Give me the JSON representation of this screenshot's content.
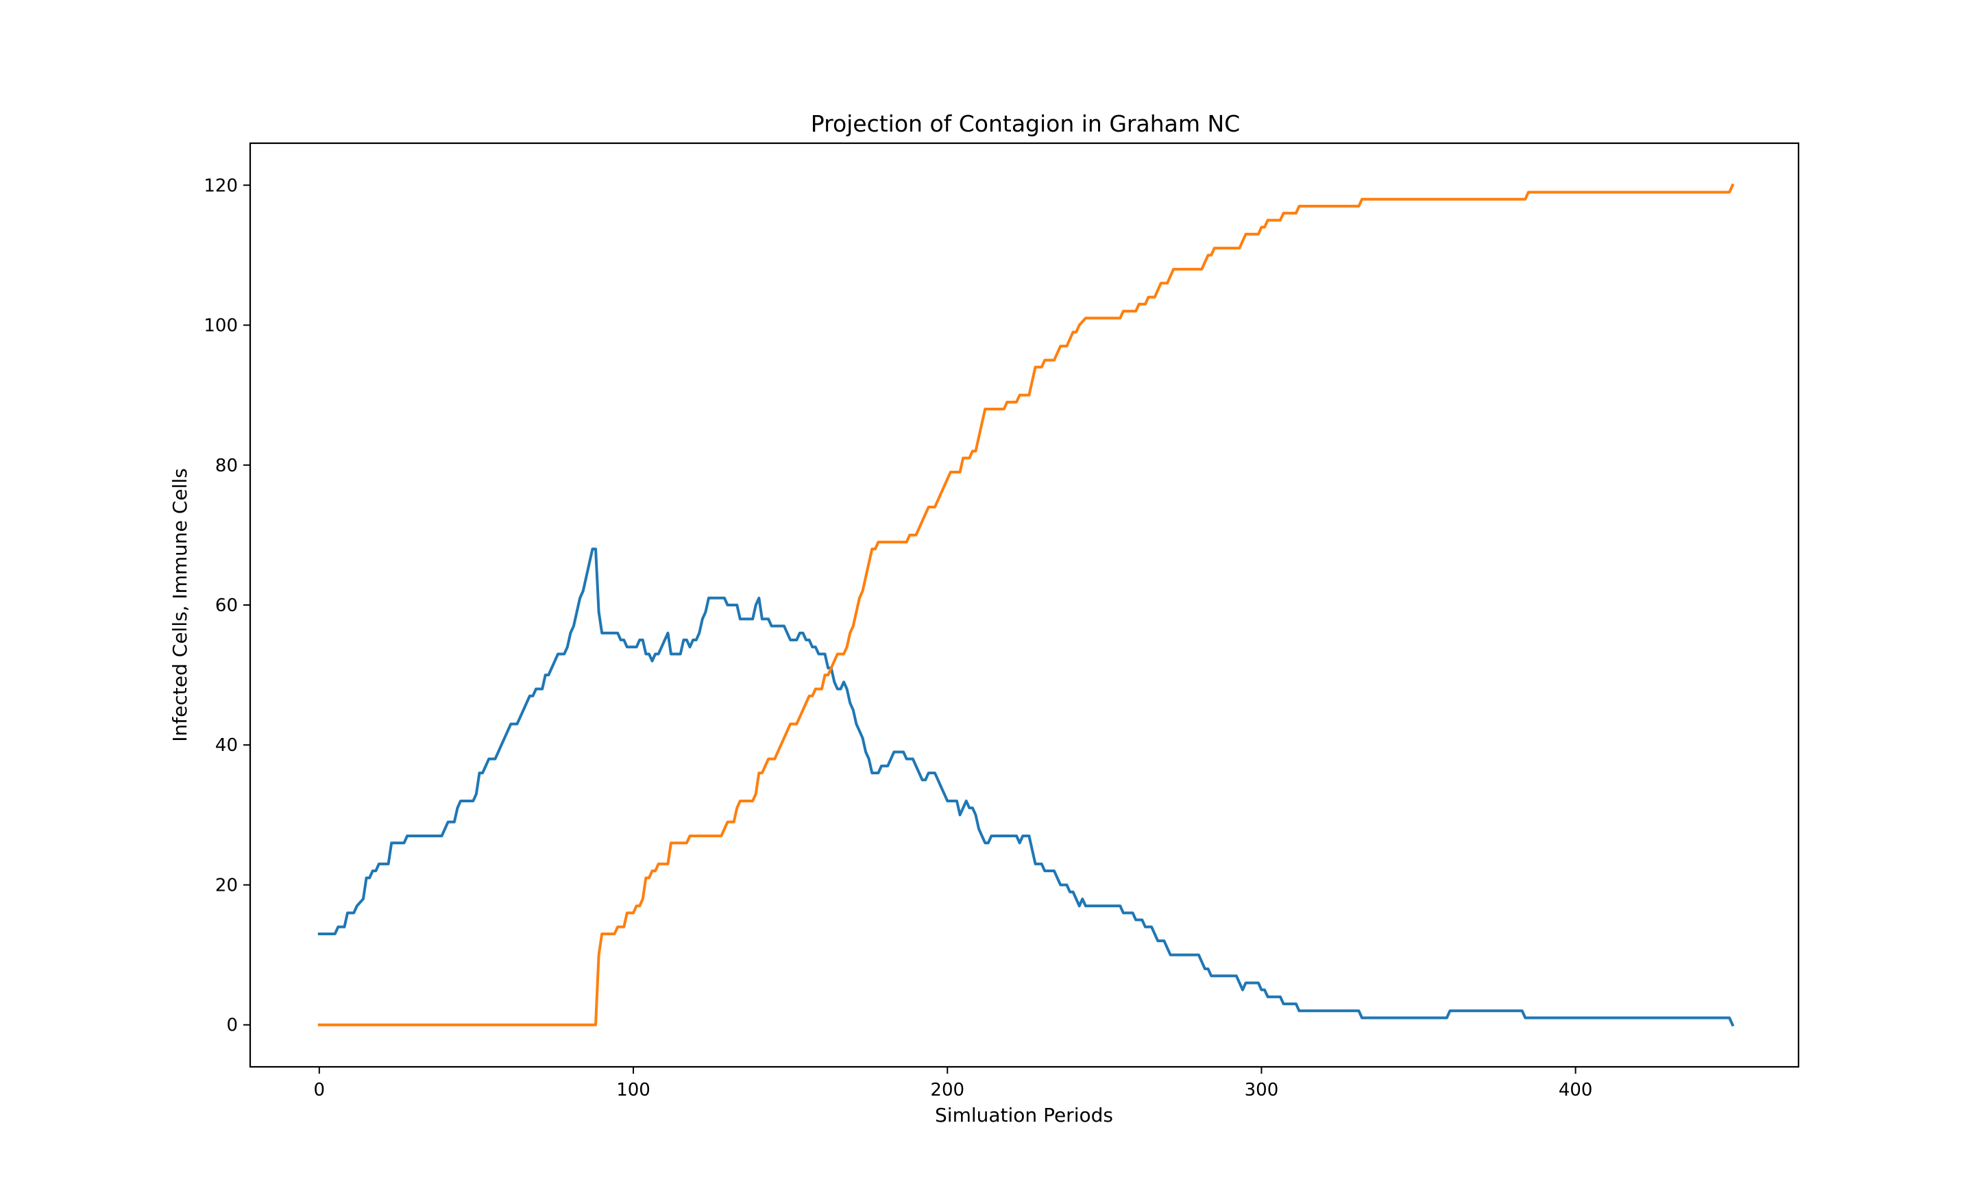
{
  "chart_data": {
    "type": "line",
    "title": "Projection of Contagion in Graham NC",
    "xlabel": "Simluation Periods",
    "ylabel": "Infected Cells, Immune Cells",
    "xlim": [
      -22,
      471
    ],
    "ylim": [
      -6,
      126
    ],
    "xticks": [
      0,
      100,
      200,
      300,
      400
    ],
    "yticks": [
      0,
      20,
      40,
      60,
      80,
      100,
      120
    ],
    "grid": false,
    "legend": "none",
    "series": [
      {
        "color": "#1f77b4",
        "points": [
          [
            0,
            13
          ],
          [
            5,
            13
          ],
          [
            6,
            14
          ],
          [
            8,
            14
          ],
          [
            9,
            16
          ],
          [
            11,
            16
          ],
          [
            12,
            17
          ],
          [
            14,
            18
          ],
          [
            15,
            21
          ],
          [
            16,
            21
          ],
          [
            17,
            22
          ],
          [
            18,
            22
          ],
          [
            19,
            23
          ],
          [
            22,
            23
          ],
          [
            23,
            26
          ],
          [
            27,
            26
          ],
          [
            28,
            27
          ],
          [
            39,
            27
          ],
          [
            40,
            28
          ],
          [
            41,
            29
          ],
          [
            43,
            29
          ],
          [
            44,
            31
          ],
          [
            45,
            32
          ],
          [
            49,
            32
          ],
          [
            50,
            33
          ],
          [
            51,
            36
          ],
          [
            52,
            36
          ],
          [
            53,
            37
          ],
          [
            54,
            38
          ],
          [
            56,
            38
          ],
          [
            58,
            40
          ],
          [
            60,
            42
          ],
          [
            61,
            43
          ],
          [
            63,
            43
          ],
          [
            65,
            45
          ],
          [
            67,
            47
          ],
          [
            68,
            47
          ],
          [
            69,
            48
          ],
          [
            71,
            48
          ],
          [
            72,
            50
          ],
          [
            73,
            50
          ],
          [
            75,
            52
          ],
          [
            76,
            53
          ],
          [
            78,
            53
          ],
          [
            79,
            54
          ],
          [
            80,
            56
          ],
          [
            81,
            57
          ],
          [
            82,
            59
          ],
          [
            83,
            61
          ],
          [
            84,
            62
          ],
          [
            85,
            64
          ],
          [
            86,
            66
          ],
          [
            87,
            68
          ],
          [
            88,
            68
          ],
          [
            89,
            59
          ],
          [
            90,
            56
          ],
          [
            95,
            56
          ],
          [
            96,
            55
          ],
          [
            97,
            55
          ],
          [
            98,
            54
          ],
          [
            101,
            54
          ],
          [
            102,
            55
          ],
          [
            103,
            55
          ],
          [
            104,
            53
          ],
          [
            105,
            53
          ],
          [
            106,
            52
          ],
          [
            107,
            53
          ],
          [
            108,
            53
          ],
          [
            110,
            55
          ],
          [
            111,
            56
          ],
          [
            112,
            53
          ],
          [
            115,
            53
          ],
          [
            116,
            55
          ],
          [
            117,
            55
          ],
          [
            118,
            54
          ],
          [
            119,
            55
          ],
          [
            120,
            55
          ],
          [
            121,
            56
          ],
          [
            122,
            58
          ],
          [
            123,
            59
          ],
          [
            124,
            61
          ],
          [
            129,
            61
          ],
          [
            130,
            60
          ],
          [
            133,
            60
          ],
          [
            134,
            58
          ],
          [
            138,
            58
          ],
          [
            139,
            60
          ],
          [
            140,
            61
          ],
          [
            141,
            58
          ],
          [
            143,
            58
          ],
          [
            144,
            57
          ],
          [
            148,
            57
          ],
          [
            150,
            55
          ],
          [
            152,
            55
          ],
          [
            153,
            56
          ],
          [
            154,
            56
          ],
          [
            155,
            55
          ],
          [
            156,
            55
          ],
          [
            157,
            54
          ],
          [
            158,
            54
          ],
          [
            159,
            53
          ],
          [
            161,
            53
          ],
          [
            162,
            51
          ],
          [
            163,
            51
          ],
          [
            164,
            49
          ],
          [
            165,
            48
          ],
          [
            166,
            48
          ],
          [
            167,
            49
          ],
          [
            168,
            48
          ],
          [
            169,
            46
          ],
          [
            170,
            45
          ],
          [
            171,
            43
          ],
          [
            172,
            42
          ],
          [
            173,
            41
          ],
          [
            174,
            39
          ],
          [
            175,
            38
          ],
          [
            176,
            36
          ],
          [
            178,
            36
          ],
          [
            179,
            37
          ],
          [
            181,
            37
          ],
          [
            182,
            38
          ],
          [
            183,
            39
          ],
          [
            186,
            39
          ],
          [
            187,
            38
          ],
          [
            189,
            38
          ],
          [
            190,
            37
          ],
          [
            191,
            36
          ],
          [
            192,
            35
          ],
          [
            193,
            35
          ],
          [
            194,
            36
          ],
          [
            196,
            36
          ],
          [
            197,
            35
          ],
          [
            198,
            34
          ],
          [
            199,
            33
          ],
          [
            200,
            32
          ],
          [
            203,
            32
          ],
          [
            204,
            30
          ],
          [
            205,
            31
          ],
          [
            206,
            32
          ],
          [
            207,
            31
          ],
          [
            208,
            31
          ],
          [
            209,
            30
          ],
          [
            210,
            28
          ],
          [
            211,
            27
          ],
          [
            212,
            26
          ],
          [
            213,
            26
          ],
          [
            214,
            27
          ],
          [
            222,
            27
          ],
          [
            223,
            26
          ],
          [
            224,
            27
          ],
          [
            226,
            27
          ],
          [
            227,
            25
          ],
          [
            228,
            23
          ],
          [
            230,
            23
          ],
          [
            231,
            22
          ],
          [
            234,
            22
          ],
          [
            235,
            21
          ],
          [
            236,
            20
          ],
          [
            238,
            20
          ],
          [
            239,
            19
          ],
          [
            240,
            19
          ],
          [
            241,
            18
          ],
          [
            242,
            17
          ],
          [
            243,
            18
          ],
          [
            244,
            17
          ],
          [
            255,
            17
          ],
          [
            256,
            16
          ],
          [
            259,
            16
          ],
          [
            260,
            15
          ],
          [
            262,
            15
          ],
          [
            263,
            14
          ],
          [
            265,
            14
          ],
          [
            266,
            13
          ],
          [
            267,
            12
          ],
          [
            269,
            12
          ],
          [
            270,
            11
          ],
          [
            271,
            10
          ],
          [
            280,
            10
          ],
          [
            281,
            9
          ],
          [
            282,
            8
          ],
          [
            283,
            8
          ],
          [
            284,
            7
          ],
          [
            292,
            7
          ],
          [
            293,
            6
          ],
          [
            294,
            5
          ],
          [
            295,
            6
          ],
          [
            299,
            6
          ],
          [
            300,
            5
          ],
          [
            301,
            5
          ],
          [
            302,
            4
          ],
          [
            306,
            4
          ],
          [
            307,
            3
          ],
          [
            311,
            3
          ],
          [
            312,
            2
          ],
          [
            331,
            2
          ],
          [
            332,
            1
          ],
          [
            359,
            1
          ],
          [
            360,
            2
          ],
          [
            383,
            2
          ],
          [
            384,
            1
          ],
          [
            449,
            1
          ],
          [
            450,
            0
          ]
        ]
      },
      {
        "color": "#ff7f0e",
        "points": [
          [
            0,
            0
          ],
          [
            88,
            0
          ],
          [
            89,
            10
          ],
          [
            90,
            13
          ],
          [
            94,
            13
          ],
          [
            95,
            14
          ],
          [
            97,
            14
          ],
          [
            98,
            16
          ],
          [
            100,
            16
          ],
          [
            101,
            17
          ],
          [
            102,
            17
          ],
          [
            103,
            18
          ],
          [
            104,
            21
          ],
          [
            105,
            21
          ],
          [
            106,
            22
          ],
          [
            107,
            22
          ],
          [
            108,
            23
          ],
          [
            111,
            23
          ],
          [
            112,
            26
          ],
          [
            117,
            26
          ],
          [
            118,
            27
          ],
          [
            128,
            27
          ],
          [
            129,
            28
          ],
          [
            130,
            29
          ],
          [
            132,
            29
          ],
          [
            133,
            31
          ],
          [
            134,
            32
          ],
          [
            138,
            32
          ],
          [
            139,
            33
          ],
          [
            140,
            36
          ],
          [
            141,
            36
          ],
          [
            142,
            37
          ],
          [
            143,
            38
          ],
          [
            145,
            38
          ],
          [
            147,
            40
          ],
          [
            149,
            42
          ],
          [
            150,
            43
          ],
          [
            152,
            43
          ],
          [
            154,
            45
          ],
          [
            156,
            47
          ],
          [
            157,
            47
          ],
          [
            158,
            48
          ],
          [
            160,
            48
          ],
          [
            161,
            50
          ],
          [
            162,
            50
          ],
          [
            164,
            52
          ],
          [
            165,
            53
          ],
          [
            167,
            53
          ],
          [
            168,
            54
          ],
          [
            169,
            56
          ],
          [
            170,
            57
          ],
          [
            171,
            59
          ],
          [
            172,
            61
          ],
          [
            173,
            62
          ],
          [
            174,
            64
          ],
          [
            175,
            66
          ],
          [
            176,
            68
          ],
          [
            177,
            68
          ],
          [
            178,
            69
          ],
          [
            187,
            69
          ],
          [
            188,
            70
          ],
          [
            190,
            70
          ],
          [
            191,
            71
          ],
          [
            192,
            72
          ],
          [
            193,
            73
          ],
          [
            194,
            74
          ],
          [
            196,
            74
          ],
          [
            197,
            75
          ],
          [
            198,
            76
          ],
          [
            199,
            77
          ],
          [
            200,
            78
          ],
          [
            201,
            79
          ],
          [
            204,
            79
          ],
          [
            205,
            81
          ],
          [
            207,
            81
          ],
          [
            208,
            82
          ],
          [
            209,
            82
          ],
          [
            210,
            84
          ],
          [
            211,
            86
          ],
          [
            212,
            88
          ],
          [
            218,
            88
          ],
          [
            219,
            89
          ],
          [
            222,
            89
          ],
          [
            223,
            90
          ],
          [
            226,
            90
          ],
          [
            227,
            92
          ],
          [
            228,
            94
          ],
          [
            230,
            94
          ],
          [
            231,
            95
          ],
          [
            234,
            95
          ],
          [
            235,
            96
          ],
          [
            236,
            97
          ],
          [
            238,
            97
          ],
          [
            239,
            98
          ],
          [
            240,
            99
          ],
          [
            241,
            99
          ],
          [
            242,
            100
          ],
          [
            244,
            101
          ],
          [
            255,
            101
          ],
          [
            256,
            102
          ],
          [
            260,
            102
          ],
          [
            261,
            103
          ],
          [
            263,
            103
          ],
          [
            264,
            104
          ],
          [
            266,
            104
          ],
          [
            267,
            105
          ],
          [
            268,
            106
          ],
          [
            270,
            106
          ],
          [
            271,
            107
          ],
          [
            272,
            108
          ],
          [
            281,
            108
          ],
          [
            282,
            109
          ],
          [
            283,
            110
          ],
          [
            284,
            110
          ],
          [
            285,
            111
          ],
          [
            293,
            111
          ],
          [
            294,
            112
          ],
          [
            295,
            113
          ],
          [
            299,
            113
          ],
          [
            300,
            114
          ],
          [
            301,
            114
          ],
          [
            302,
            115
          ],
          [
            306,
            115
          ],
          [
            307,
            116
          ],
          [
            311,
            116
          ],
          [
            312,
            117
          ],
          [
            331,
            117
          ],
          [
            332,
            118
          ],
          [
            384,
            118
          ],
          [
            385,
            119
          ],
          [
            449,
            119
          ],
          [
            450,
            120
          ]
        ]
      }
    ]
  }
}
